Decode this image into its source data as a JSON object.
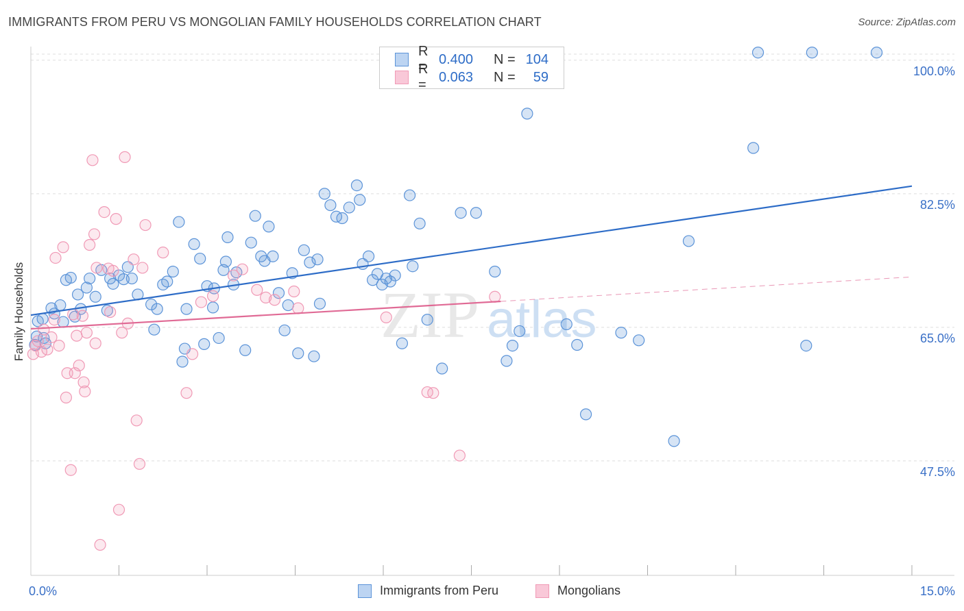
{
  "title": "IMMIGRANTS FROM PERU VS MONGOLIAN FAMILY HOUSEHOLDS CORRELATION CHART",
  "source": "Source: ZipAtlas.com",
  "watermark": {
    "zip": "ZIP",
    "atlas": "atlas"
  },
  "legend": {
    "series1": {
      "r_label": "R =",
      "r_value": "0.400",
      "n_label": "N =",
      "n_value": "104"
    },
    "series2": {
      "r_label": "R =",
      "r_value": "0.063",
      "n_label": "N =",
      "n_value": "59"
    }
  },
  "chart_data": {
    "type": "scatter",
    "title": "IMMIGRANTS FROM PERU VS MONGOLIAN FAMILY HOUSEHOLDS CORRELATION CHART",
    "xlabel": "",
    "ylabel": "Family Households",
    "xlim": [
      0,
      15
    ],
    "ylim": [
      32.5,
      102.5
    ],
    "x_tick_labels": [
      "0.0%",
      "15.0%"
    ],
    "y_ticks": [
      47.5,
      65.0,
      82.5,
      100.0
    ],
    "y_tick_labels": [
      "47.5%",
      "65.0%",
      "82.5%",
      "100.0%"
    ],
    "grid": true,
    "colors": {
      "peru": "#5b93d8",
      "mongolians": "#f099b5",
      "peru_line": "#2d6cc7",
      "mongolians_line": "#e06a95",
      "ytick": "#3a70c7"
    },
    "series": [
      {
        "name": "Immigrants from Peru",
        "r": 0.4,
        "n": 104,
        "trend": {
          "x": [
            0,
            15
          ],
          "y": [
            66.6,
            83.5
          ]
        },
        "points": [
          [
            0.07,
            62.7
          ],
          [
            0.1,
            63.8
          ],
          [
            0.12,
            65.8
          ],
          [
            0.2,
            66.1
          ],
          [
            0.22,
            63.6
          ],
          [
            0.25,
            62.9
          ],
          [
            0.35,
            67.5
          ],
          [
            0.4,
            66.8
          ],
          [
            0.5,
            67.9
          ],
          [
            0.55,
            65.7
          ],
          [
            0.6,
            71.2
          ],
          [
            0.68,
            71.5
          ],
          [
            0.75,
            66.4
          ],
          [
            0.8,
            69.3
          ],
          [
            0.85,
            67.4
          ],
          [
            0.95,
            70.2
          ],
          [
            1.0,
            71.4
          ],
          [
            1.1,
            69.0
          ],
          [
            1.2,
            72.5
          ],
          [
            1.3,
            67.2
          ],
          [
            1.35,
            71.4
          ],
          [
            1.4,
            70.7
          ],
          [
            1.5,
            71.8
          ],
          [
            1.58,
            71.3
          ],
          [
            1.65,
            72.9
          ],
          [
            1.72,
            71.4
          ],
          [
            1.82,
            69.3
          ],
          [
            2.05,
            68.0
          ],
          [
            2.1,
            64.7
          ],
          [
            2.15,
            67.4
          ],
          [
            2.25,
            70.6
          ],
          [
            2.32,
            71.0
          ],
          [
            2.42,
            72.3
          ],
          [
            2.52,
            78.8
          ],
          [
            2.58,
            60.5
          ],
          [
            2.62,
            62.2
          ],
          [
            2.65,
            67.4
          ],
          [
            2.78,
            75.9
          ],
          [
            2.88,
            74.0
          ],
          [
            2.95,
            62.8
          ],
          [
            3.0,
            70.4
          ],
          [
            3.1,
            67.6
          ],
          [
            3.12,
            70.1
          ],
          [
            3.2,
            63.6
          ],
          [
            3.28,
            72.5
          ],
          [
            3.32,
            73.6
          ],
          [
            3.35,
            76.8
          ],
          [
            3.45,
            70.6
          ],
          [
            3.5,
            72.2
          ],
          [
            3.65,
            62.0
          ],
          [
            3.75,
            76.1
          ],
          [
            3.82,
            79.6
          ],
          [
            3.92,
            74.3
          ],
          [
            3.98,
            73.7
          ],
          [
            4.05,
            78.2
          ],
          [
            4.12,
            74.3
          ],
          [
            4.22,
            69.5
          ],
          [
            4.32,
            64.6
          ],
          [
            4.38,
            67.9
          ],
          [
            4.45,
            72.1
          ],
          [
            4.55,
            61.6
          ],
          [
            4.65,
            75.1
          ],
          [
            4.75,
            73.5
          ],
          [
            4.82,
            61.2
          ],
          [
            4.88,
            73.9
          ],
          [
            4.92,
            68.1
          ],
          [
            5.0,
            82.5
          ],
          [
            5.1,
            81.0
          ],
          [
            5.2,
            79.5
          ],
          [
            5.3,
            79.3
          ],
          [
            5.42,
            80.7
          ],
          [
            5.55,
            83.6
          ],
          [
            5.6,
            81.7
          ],
          [
            5.65,
            73.3
          ],
          [
            5.75,
            74.3
          ],
          [
            5.82,
            71.2
          ],
          [
            5.9,
            72.0
          ],
          [
            5.98,
            70.6
          ],
          [
            6.05,
            71.4
          ],
          [
            6.12,
            71.0
          ],
          [
            6.2,
            71.8
          ],
          [
            6.32,
            62.9
          ],
          [
            6.45,
            82.3
          ],
          [
            6.5,
            73.0
          ],
          [
            6.62,
            78.6
          ],
          [
            6.75,
            66.0
          ],
          [
            7.0,
            59.6
          ],
          [
            7.32,
            80.0
          ],
          [
            7.58,
            80.0
          ],
          [
            7.9,
            72.3
          ],
          [
            8.1,
            60.6
          ],
          [
            8.2,
            62.6
          ],
          [
            8.32,
            64.5
          ],
          [
            8.45,
            93.0
          ],
          [
            9.12,
            65.4
          ],
          [
            9.3,
            62.7
          ],
          [
            9.45,
            53.6
          ],
          [
            10.05,
            64.3
          ],
          [
            10.35,
            63.3
          ],
          [
            10.95,
            50.1
          ],
          [
            11.2,
            76.3
          ],
          [
            12.3,
            88.5
          ],
          [
            12.38,
            101.0
          ],
          [
            13.2,
            62.6
          ],
          [
            13.3,
            101.0
          ],
          [
            14.4,
            101.0
          ]
        ]
      },
      {
        "name": "Mongolians",
        "r": 0.063,
        "n": 59,
        "trend": {
          "x": [
            0,
            8
          ],
          "y": [
            64.8,
            68.4
          ]
        },
        "trend_dashed": {
          "x": [
            8,
            15
          ],
          "y": [
            68.4,
            71.6
          ]
        },
        "points": [
          [
            0.04,
            61.5
          ],
          [
            0.08,
            62.6
          ],
          [
            0.12,
            63.2
          ],
          [
            0.18,
            61.8
          ],
          [
            0.22,
            64.7
          ],
          [
            0.28,
            62.1
          ],
          [
            0.35,
            63.7
          ],
          [
            0.4,
            66.0
          ],
          [
            0.42,
            74.1
          ],
          [
            0.48,
            62.6
          ],
          [
            0.55,
            75.5
          ],
          [
            0.6,
            55.8
          ],
          [
            0.62,
            59.0
          ],
          [
            0.68,
            46.3
          ],
          [
            0.72,
            66.7
          ],
          [
            0.75,
            59.0
          ],
          [
            0.78,
            63.9
          ],
          [
            0.82,
            60.0
          ],
          [
            0.88,
            66.5
          ],
          [
            0.9,
            57.8
          ],
          [
            0.92,
            56.6
          ],
          [
            0.95,
            64.3
          ],
          [
            1.0,
            75.8
          ],
          [
            1.05,
            86.9
          ],
          [
            1.08,
            77.2
          ],
          [
            1.1,
            62.9
          ],
          [
            1.12,
            72.8
          ],
          [
            1.18,
            36.5
          ],
          [
            1.25,
            80.1
          ],
          [
            1.32,
            72.7
          ],
          [
            1.35,
            67.0
          ],
          [
            1.4,
            72.4
          ],
          [
            1.45,
            79.2
          ],
          [
            1.5,
            41.1
          ],
          [
            1.55,
            64.3
          ],
          [
            1.6,
            87.3
          ],
          [
            1.65,
            65.5
          ],
          [
            1.75,
            73.9
          ],
          [
            1.8,
            52.8
          ],
          [
            1.85,
            47.1
          ],
          [
            1.9,
            72.8
          ],
          [
            1.95,
            78.4
          ],
          [
            2.25,
            74.8
          ],
          [
            2.65,
            56.4
          ],
          [
            2.75,
            61.5
          ],
          [
            2.9,
            68.3
          ],
          [
            3.1,
            69.1
          ],
          [
            3.45,
            71.8
          ],
          [
            3.6,
            72.6
          ],
          [
            3.85,
            69.9
          ],
          [
            4.0,
            68.9
          ],
          [
            4.15,
            68.6
          ],
          [
            4.48,
            69.7
          ],
          [
            4.55,
            67.5
          ],
          [
            6.05,
            66.3
          ],
          [
            6.75,
            56.5
          ],
          [
            6.85,
            56.4
          ],
          [
            7.3,
            48.2
          ],
          [
            7.9,
            69.0
          ]
        ]
      }
    ]
  },
  "bottom_legend": {
    "series1_label": "Immigrants from Peru",
    "series2_label": "Mongolians"
  }
}
